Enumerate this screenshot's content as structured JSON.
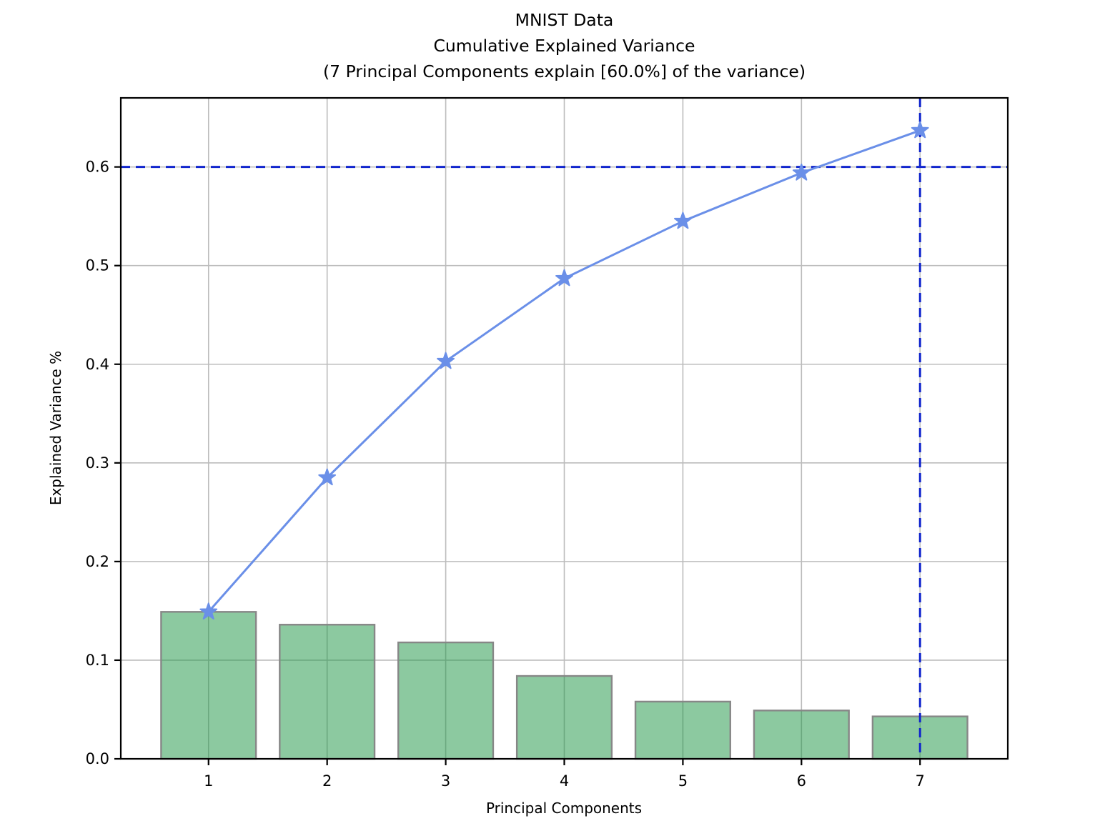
{
  "figure": {
    "title_lines": [
      "MNIST Data",
      "Cumulative Explained Variance",
      "(7 Principal Components explain [60.0%] of the variance)"
    ],
    "xlabel": "Principal Components",
    "ylabel": "Explained Variance %"
  },
  "chart_data": {
    "type": "bar",
    "subtype": "pareto (bar + cumulative line)",
    "title": "MNIST Data | Cumulative Explained Variance | (7 Principal Components explain [60.0%] of the variance)",
    "xlabel": "Principal Components",
    "ylabel": "Explained Variance %",
    "categories": [
      1,
      2,
      3,
      4,
      5,
      6,
      7
    ],
    "series": [
      {
        "name": "individual-explained-variance-bars",
        "type": "bar",
        "values": [
          0.149,
          0.136,
          0.118,
          0.084,
          0.058,
          0.049,
          0.043
        ]
      },
      {
        "name": "cumulative-explained-variance-line",
        "type": "line",
        "marker": "star",
        "values": [
          0.149,
          0.285,
          0.403,
          0.487,
          0.545,
          0.594,
          0.637
        ]
      }
    ],
    "threshold_lines": {
      "horizontal_y": 0.6,
      "vertical_x": 7,
      "style": "dashed"
    },
    "xticks": [
      "1",
      "2",
      "3",
      "4",
      "5",
      "6",
      "7"
    ],
    "yticks": [
      "0.0",
      "0.1",
      "0.2",
      "0.3",
      "0.4",
      "0.5",
      "0.6"
    ],
    "xlim": [
      0.26,
      7.74
    ],
    "ylim": [
      0.0,
      0.67
    ],
    "bar_width": 0.8,
    "grid": true,
    "legend": "none",
    "colors": {
      "bar_fill_rgba": "rgba(25,147,65,0.5)",
      "bar_edge": "#878787",
      "line": "#6a8fe8",
      "threshold": "#1126cd",
      "grid": "#bcbcbc",
      "spine": "#000000"
    }
  }
}
